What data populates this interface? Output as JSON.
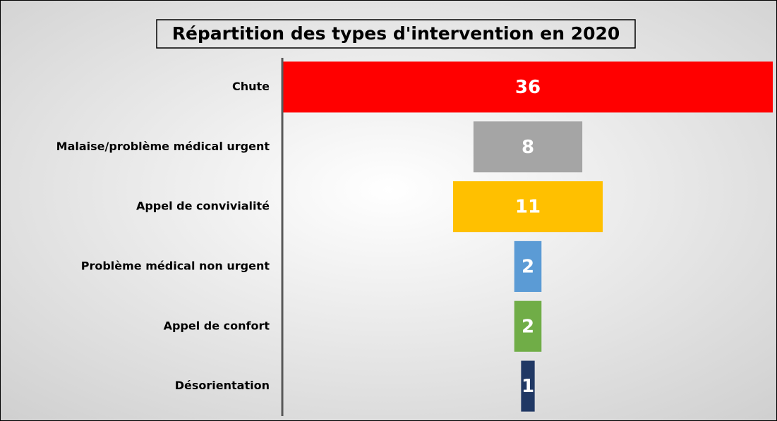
{
  "chart_data": {
    "type": "funnel",
    "title": "Répartition des types d'intervention en 2020",
    "categories": [
      "Chute",
      "Malaise/problème médical urgent",
      "Appel de convivialité",
      "Problème médical non urgent",
      "Appel de confort",
      "Désorientation"
    ],
    "values": [
      36,
      8,
      11,
      2,
      2,
      1
    ],
    "colors": [
      "#ff0000",
      "#a5a5a5",
      "#ffc000",
      "#5b9bd5",
      "#70ad47",
      "#203864"
    ]
  }
}
